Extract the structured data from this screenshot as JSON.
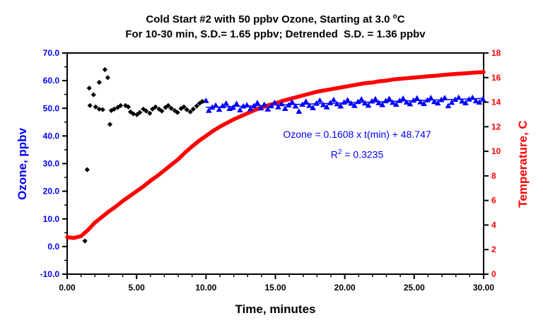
{
  "chart_data": {
    "type": "scatter",
    "title": {
      "line1_pre": "Cold Start #2 with 50 ppbv Ozone, Starting at 3.0 ",
      "line1_sup": "o",
      "line1_post": "C",
      "line2": "For 10-30 min, S.D.= 1.65 ppbv; Detrended  S.D. = 1.36 ppbv"
    },
    "annotation": {
      "line1": "Ozone = 0.1608 x t(min) + 48.747",
      "r2_base": "R",
      "r2_sup": "2",
      "r2_rest": " = 0.3235"
    },
    "axes": {
      "x": {
        "title": "Time, minutes",
        "range": [
          0,
          30
        ],
        "tick_values": [
          0,
          5,
          10,
          15,
          20,
          25,
          30
        ],
        "tick_labels": [
          "0.00",
          "5.00",
          "10.00",
          "15.00",
          "20.00",
          "25.00",
          "30.00"
        ],
        "minor_step": 1
      },
      "y_left": {
        "title": "Ozone, ppbv",
        "color": "#0000FF",
        "range": [
          -10,
          70
        ],
        "tick_values": [
          70,
          60,
          50,
          40,
          30,
          20,
          10,
          0,
          -10
        ],
        "tick_labels": [
          "70.0",
          "60.0",
          "50.0",
          "40.0",
          "30.0",
          "20.0",
          "10.0",
          "0.0",
          "-10.0"
        ],
        "minor_step": 5
      },
      "y_right": {
        "title": "Temperature, C",
        "color": "#FF0000",
        "range": [
          0,
          18
        ],
        "tick_values": [
          18,
          16,
          14,
          12,
          10,
          8,
          6,
          4,
          2,
          0
        ],
        "tick_labels": [
          "18",
          "16",
          "14",
          "12",
          "10",
          "8",
          "6",
          "4",
          "2",
          "0"
        ]
      }
    },
    "colors": {
      "ozone_early": "#000000",
      "ozone_late": "#0000FF",
      "temperature": "#FF0000",
      "frame": "#000000",
      "background": "#FFFFFF"
    },
    "series": [
      {
        "name": "ozone-early-black-diamonds",
        "marker": "diamond",
        "color": "#000000",
        "axis": "left",
        "points": [
          [
            1.28,
            2.0
          ],
          [
            1.44,
            27.8
          ],
          [
            1.59,
            57.3
          ],
          [
            1.64,
            51.0
          ],
          [
            1.9,
            54.9
          ],
          [
            2.05,
            50.5
          ],
          [
            2.31,
            59.4
          ],
          [
            2.31,
            49.7
          ],
          [
            2.56,
            49.5
          ],
          [
            2.72,
            64.0
          ],
          [
            2.92,
            61.1
          ],
          [
            3.08,
            44.2
          ],
          [
            3.18,
            49.2
          ],
          [
            3.38,
            49.7
          ],
          [
            3.64,
            50.3
          ],
          [
            3.85,
            51.0
          ],
          [
            4.21,
            51.0
          ],
          [
            4.41,
            50.5
          ],
          [
            4.56,
            48.7
          ],
          [
            4.77,
            48.0
          ],
          [
            5.03,
            47.7
          ],
          [
            5.23,
            48.5
          ],
          [
            5.49,
            49.7
          ],
          [
            5.69,
            49.0
          ],
          [
            5.95,
            48.2
          ],
          [
            6.15,
            49.7
          ],
          [
            6.36,
            50.5
          ],
          [
            6.62,
            49.7
          ],
          [
            6.82,
            49.0
          ],
          [
            7.08,
            50.3
          ],
          [
            7.28,
            51.0
          ],
          [
            7.49,
            50.0
          ],
          [
            7.74,
            49.2
          ],
          [
            7.95,
            48.5
          ],
          [
            8.21,
            49.9
          ],
          [
            8.41,
            50.5
          ],
          [
            8.62,
            49.5
          ],
          [
            8.87,
            48.7
          ],
          [
            9.08,
            49.7
          ],
          [
            9.33,
            50.8
          ],
          [
            9.54,
            51.8
          ],
          [
            9.74,
            52.5
          ]
        ]
      },
      {
        "name": "ozone-late-blue-triangles",
        "marker": "triangle",
        "color": "#0000FF",
        "axis": "left",
        "points": [
          [
            10.0,
            52.8
          ],
          [
            10.2,
            49.2
          ],
          [
            10.45,
            50.4
          ],
          [
            10.7,
            51.1
          ],
          [
            10.95,
            49.6
          ],
          [
            11.2,
            50.9
          ],
          [
            11.45,
            51.8
          ],
          [
            11.7,
            49.9
          ],
          [
            11.95,
            50.3
          ],
          [
            12.2,
            51.7
          ],
          [
            12.45,
            49.4
          ],
          [
            12.7,
            50.8
          ],
          [
            12.95,
            51.2
          ],
          [
            13.2,
            49.8
          ],
          [
            13.45,
            50.9
          ],
          [
            13.7,
            52.0
          ],
          [
            13.95,
            50.1
          ],
          [
            14.2,
            51.4
          ],
          [
            14.45,
            49.7
          ],
          [
            14.7,
            50.9
          ],
          [
            14.95,
            52.1
          ],
          [
            15.2,
            50.5
          ],
          [
            15.45,
            51.6
          ],
          [
            15.7,
            49.9
          ],
          [
            15.95,
            51.2
          ],
          [
            16.2,
            52.3
          ],
          [
            16.45,
            50.8
          ],
          [
            16.7,
            48.9
          ],
          [
            16.95,
            51.4
          ],
          [
            17.2,
            52.5
          ],
          [
            17.45,
            51.0
          ],
          [
            17.7,
            50.2
          ],
          [
            17.95,
            51.8
          ],
          [
            18.2,
            52.9
          ],
          [
            18.45,
            51.3
          ],
          [
            18.7,
            50.5
          ],
          [
            18.95,
            52.0
          ],
          [
            19.2,
            53.1
          ],
          [
            19.45,
            51.6
          ],
          [
            19.7,
            50.8
          ],
          [
            19.95,
            52.2
          ],
          [
            20.2,
            53.0
          ],
          [
            20.45,
            51.8
          ],
          [
            20.7,
            51.0
          ],
          [
            20.95,
            52.4
          ],
          [
            21.2,
            53.3
          ],
          [
            21.45,
            51.9
          ],
          [
            21.7,
            51.1
          ],
          [
            21.95,
            52.6
          ],
          [
            22.2,
            53.4
          ],
          [
            22.45,
            52.0
          ],
          [
            22.7,
            51.3
          ],
          [
            22.95,
            52.7
          ],
          [
            23.2,
            53.5
          ],
          [
            23.45,
            52.1
          ],
          [
            23.7,
            51.4
          ],
          [
            23.95,
            52.8
          ],
          [
            24.2,
            53.6
          ],
          [
            24.45,
            52.2
          ],
          [
            24.7,
            51.6
          ],
          [
            24.95,
            52.9
          ],
          [
            25.2,
            53.7
          ],
          [
            25.45,
            52.3
          ],
          [
            25.7,
            51.7
          ],
          [
            25.95,
            53.0
          ],
          [
            26.2,
            53.8
          ],
          [
            26.45,
            52.4
          ],
          [
            26.7,
            51.9
          ],
          [
            26.95,
            53.1
          ],
          [
            27.2,
            53.8
          ],
          [
            27.45,
            50.9
          ],
          [
            27.7,
            52.1
          ],
          [
            27.95,
            53.2
          ],
          [
            28.2,
            53.9
          ],
          [
            28.45,
            52.6
          ],
          [
            28.7,
            52.0
          ],
          [
            28.95,
            53.3
          ],
          [
            29.2,
            53.9
          ],
          [
            29.45,
            52.7
          ],
          [
            29.7,
            52.2
          ],
          [
            29.95,
            53.3
          ]
        ]
      },
      {
        "name": "ozone-trendline",
        "marker": "none",
        "style": "line",
        "color": "#0000FF",
        "axis": "left",
        "slope": 0.1608,
        "intercept": 48.747,
        "r2": 0.3235,
        "t_range": [
          10,
          30
        ]
      },
      {
        "name": "temperature-curve",
        "marker": "none",
        "style": "thick-line",
        "color": "#FF0000",
        "axis": "right",
        "points": [
          [
            0,
            3.0
          ],
          [
            0.5,
            2.95
          ],
          [
            1,
            3.1
          ],
          [
            1.5,
            3.6
          ],
          [
            2,
            4.2
          ],
          [
            2.5,
            4.65
          ],
          [
            3,
            5.1
          ],
          [
            3.5,
            5.5
          ],
          [
            4,
            5.95
          ],
          [
            4.5,
            6.35
          ],
          [
            5,
            6.75
          ],
          [
            5.5,
            7.15
          ],
          [
            6,
            7.6
          ],
          [
            6.5,
            8.0
          ],
          [
            7,
            8.45
          ],
          [
            7.5,
            8.9
          ],
          [
            8,
            9.35
          ],
          [
            8.5,
            9.9
          ],
          [
            9,
            10.4
          ],
          [
            9.5,
            10.85
          ],
          [
            10,
            11.25
          ],
          [
            10.5,
            11.65
          ],
          [
            11,
            12.0
          ],
          [
            11.5,
            12.3
          ],
          [
            12,
            12.6
          ],
          [
            12.5,
            12.85
          ],
          [
            13,
            13.1
          ],
          [
            13.5,
            13.35
          ],
          [
            14,
            13.55
          ],
          [
            14.5,
            13.75
          ],
          [
            15,
            13.9
          ],
          [
            15.5,
            14.1
          ],
          [
            16,
            14.25
          ],
          [
            16.5,
            14.4
          ],
          [
            17,
            14.55
          ],
          [
            17.5,
            14.7
          ],
          [
            18,
            14.85
          ],
          [
            18.5,
            14.95
          ],
          [
            19,
            15.05
          ],
          [
            19.5,
            15.15
          ],
          [
            20,
            15.25
          ],
          [
            20.5,
            15.35
          ],
          [
            21,
            15.45
          ],
          [
            21.5,
            15.55
          ],
          [
            22,
            15.6
          ],
          [
            22.5,
            15.7
          ],
          [
            23,
            15.75
          ],
          [
            23.5,
            15.85
          ],
          [
            24,
            15.9
          ],
          [
            24.5,
            15.95
          ],
          [
            25,
            16.0
          ],
          [
            25.5,
            16.05
          ],
          [
            26,
            16.1
          ],
          [
            26.5,
            16.15
          ],
          [
            27,
            16.2
          ],
          [
            27.5,
            16.25
          ],
          [
            28,
            16.3
          ],
          [
            28.5,
            16.33
          ],
          [
            29,
            16.37
          ],
          [
            29.5,
            16.42
          ],
          [
            30,
            16.45
          ]
        ]
      }
    ]
  }
}
